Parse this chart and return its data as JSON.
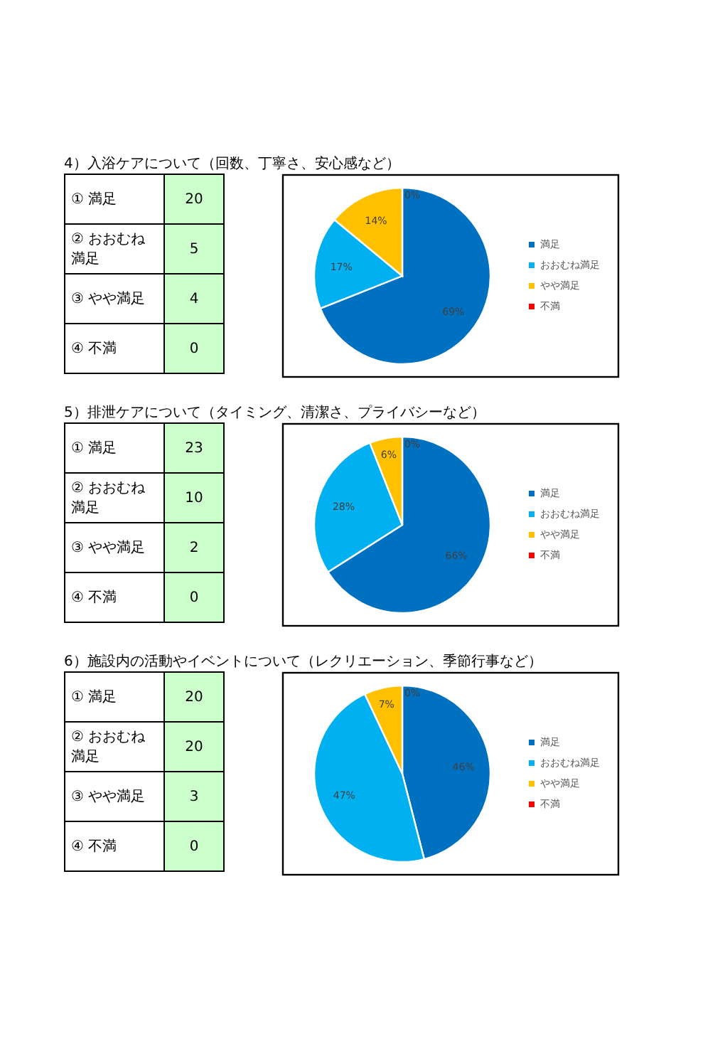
{
  "chart_data": [
    {
      "type": "other",
      "title": "4）入浴ケアについて（回数、丁寧さ、安心感など）",
      "categories": [
        "① 満足",
        "② おおむね満足",
        "③ やや満足",
        "④ 不満"
      ],
      "values": [
        20,
        5,
        4,
        0
      ],
      "data_labels": true
    },
    {
      "type": "pie",
      "categories": [
        "満足",
        "おおむね満足",
        "やや満足",
        "不満"
      ],
      "values": [
        69,
        17,
        14,
        0
      ],
      "colors": [
        "#0070c0",
        "#00b0f0",
        "#ffc000",
        "#ff0000"
      ],
      "value_labels": [
        "69%",
        "17%",
        "14%",
        "0%"
      ],
      "legend": "right"
    },
    {
      "type": "other",
      "title": "5）排泄ケアについて（タイミング、清潔さ、プライバシーなど）",
      "categories": [
        "① 満足",
        "② おおむね満足",
        "③ やや満足",
        "④ 不満"
      ],
      "values": [
        23,
        10,
        2,
        0
      ],
      "data_labels": true
    },
    {
      "type": "pie",
      "categories": [
        "満足",
        "おおむね満足",
        "やや満足",
        "不満"
      ],
      "values": [
        66,
        28,
        6,
        0
      ],
      "colors": [
        "#0070c0",
        "#00b0f0",
        "#ffc000",
        "#ff0000"
      ],
      "value_labels": [
        "66%",
        "28%",
        "6%",
        "0%"
      ],
      "legend": "right"
    },
    {
      "type": "other",
      "title": "6）施設内の活動やイベントについて（レクリエーション、季節行事など）",
      "categories": [
        "① 満足",
        "② おおむね満足",
        "③ やや満足",
        "④ 不満"
      ],
      "values": [
        20,
        20,
        3,
        0
      ],
      "data_labels": true
    },
    {
      "type": "pie",
      "categories": [
        "満足",
        "おおむね満足",
        "やや満足",
        "不満"
      ],
      "values": [
        46,
        47,
        7,
        0
      ],
      "colors": [
        "#0070c0",
        "#00b0f0",
        "#ffc000",
        "#ff0000"
      ],
      "value_labels": [
        "46%",
        "47%",
        "7%",
        "0%"
      ],
      "legend": "right"
    }
  ]
}
